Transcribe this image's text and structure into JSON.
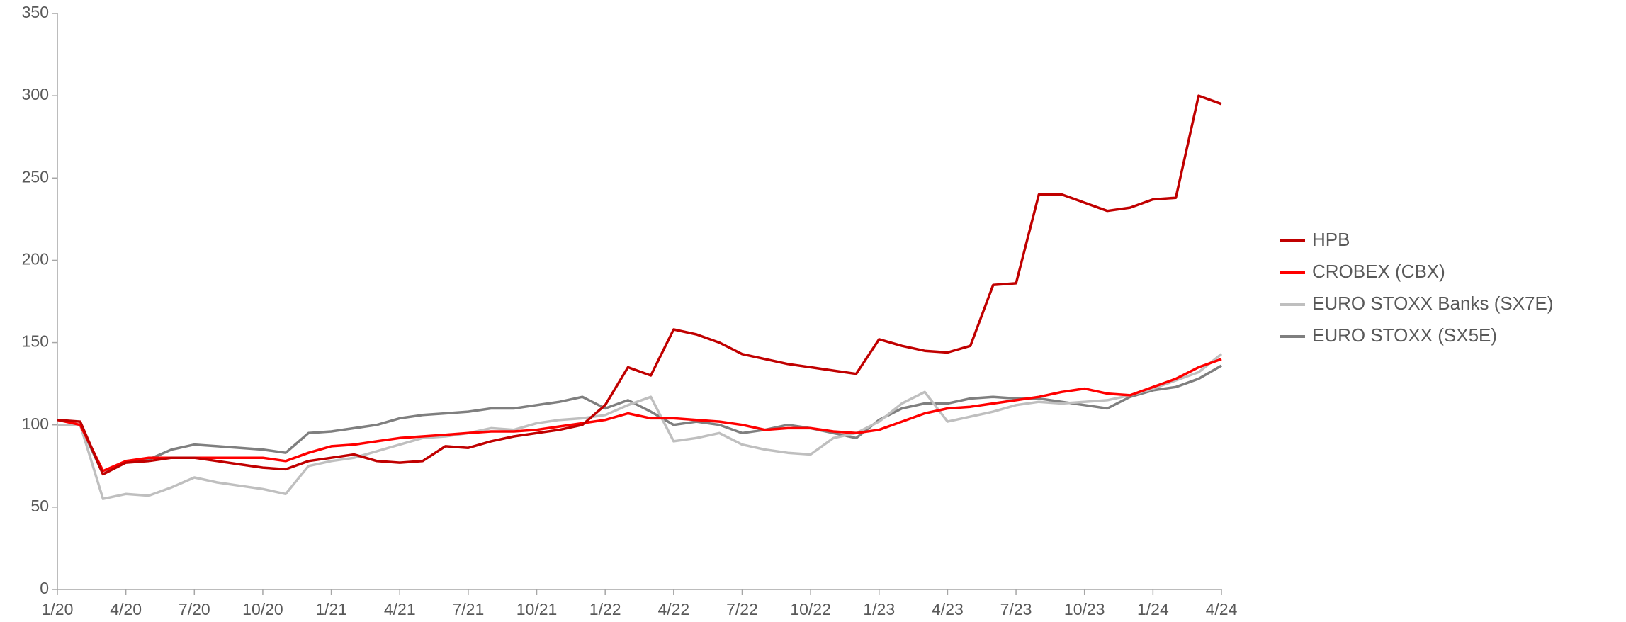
{
  "chart_data": {
    "type": "line",
    "categories": [
      "1/20",
      null,
      null,
      "4/20",
      null,
      null,
      "7/20",
      null,
      null,
      "10/20",
      null,
      null,
      "1/21",
      null,
      null,
      "4/21",
      null,
      null,
      "7/21",
      null,
      null,
      "10/21",
      null,
      null,
      "1/22",
      null,
      null,
      "4/22",
      null,
      null,
      "7/22",
      null,
      null,
      "10/22",
      null,
      null,
      "1/23",
      null,
      null,
      "4/23",
      null,
      null,
      "7/23",
      null,
      null,
      "10/23",
      null,
      null,
      "1/24",
      null,
      null,
      "4/24"
    ],
    "series": [
      {
        "name": "HPB",
        "color": "#c00000",
        "values": [
          103,
          102,
          70,
          77,
          78,
          80,
          80,
          78,
          76,
          74,
          73,
          78,
          80,
          82,
          78,
          77,
          78,
          87,
          86,
          90,
          93,
          95,
          97,
          100,
          112,
          135,
          130,
          158,
          155,
          150,
          143,
          140,
          137,
          135,
          133,
          131,
          152,
          148,
          145,
          144,
          148,
          185,
          186,
          240,
          240,
          235,
          230,
          232,
          237,
          238,
          300,
          295
        ]
      },
      {
        "name": "CROBEX (CBX)",
        "color": "#ff0000",
        "values": [
          103,
          100,
          72,
          78,
          80,
          80,
          80,
          80,
          80,
          80,
          78,
          83,
          87,
          88,
          90,
          92,
          93,
          94,
          95,
          96,
          96,
          97,
          99,
          101,
          103,
          107,
          104,
          104,
          103,
          102,
          100,
          97,
          98,
          98,
          96,
          95,
          97,
          102,
          107,
          110,
          111,
          113,
          115,
          117,
          120,
          122,
          119,
          118,
          123,
          128,
          135,
          140
        ]
      },
      {
        "name": "EURO STOXX Banks (SX7E)",
        "color": "#bfbfbf",
        "values": [
          100,
          100,
          55,
          58,
          57,
          62,
          68,
          65,
          63,
          61,
          58,
          75,
          78,
          80,
          84,
          88,
          92,
          93,
          95,
          98,
          97,
          101,
          103,
          104,
          106,
          112,
          117,
          90,
          92,
          95,
          88,
          85,
          83,
          82,
          92,
          95,
          102,
          113,
          120,
          102,
          105,
          108,
          112,
          114,
          113,
          114,
          115,
          118,
          122,
          127,
          132,
          143
        ]
      },
      {
        "name": "EURO STOXX (SX5E)",
        "color": "#7f7f7f",
        "values": [
          100,
          100,
          70,
          78,
          79,
          85,
          88,
          87,
          86,
          85,
          83,
          95,
          96,
          98,
          100,
          104,
          106,
          107,
          108,
          110,
          110,
          112,
          114,
          117,
          110,
          115,
          108,
          100,
          102,
          100,
          95,
          97,
          100,
          98,
          95,
          92,
          103,
          110,
          113,
          113,
          116,
          117,
          116,
          116,
          114,
          112,
          110,
          117,
          121,
          123,
          128,
          136
        ]
      }
    ],
    "ylim": [
      0,
      350
    ],
    "yticks": [
      0,
      50,
      100,
      150,
      200,
      250,
      300,
      350
    ],
    "grid": false,
    "legend": "right"
  }
}
